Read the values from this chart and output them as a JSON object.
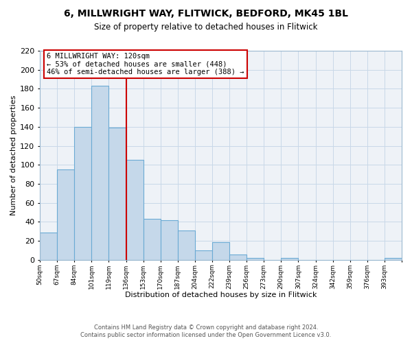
{
  "title": "6, MILLWRIGHT WAY, FLITWICK, BEDFORD, MK45 1BL",
  "subtitle": "Size of property relative to detached houses in Flitwick",
  "xlabel": "Distribution of detached houses by size in Flitwick",
  "ylabel": "Number of detached properties",
  "footer_line1": "Contains HM Land Registry data © Crown copyright and database right 2024.",
  "footer_line2": "Contains public sector information licensed under the Open Government Licence v3.0.",
  "bin_labels": [
    "50sqm",
    "67sqm",
    "84sqm",
    "101sqm",
    "119sqm",
    "136sqm",
    "153sqm",
    "170sqm",
    "187sqm",
    "204sqm",
    "222sqm",
    "239sqm",
    "256sqm",
    "273sqm",
    "290sqm",
    "307sqm",
    "324sqm",
    "342sqm",
    "359sqm",
    "376sqm",
    "393sqm"
  ],
  "bar_heights": [
    29,
    95,
    140,
    183,
    139,
    105,
    43,
    42,
    31,
    10,
    19,
    6,
    2,
    0,
    2,
    0,
    0,
    0,
    0,
    0,
    2
  ],
  "bar_color": "#c5d8ea",
  "bar_edge_color": "#6aaad4",
  "vline_x_index": 4,
  "vline_color": "#cc0000",
  "annotation_line1": "6 MILLWRIGHT WAY: 120sqm",
  "annotation_line2": "← 53% of detached houses are smaller (448)",
  "annotation_line3": "46% of semi-detached houses are larger (388) →",
  "annotation_box_edge": "#cc0000",
  "ylim": [
    0,
    220
  ],
  "yticks": [
    0,
    20,
    40,
    60,
    80,
    100,
    120,
    140,
    160,
    180,
    200,
    220
  ],
  "grid_color": "#c8d8e8",
  "background_color": "#eef2f7",
  "title_fontsize": 10,
  "subtitle_fontsize": 8.5
}
